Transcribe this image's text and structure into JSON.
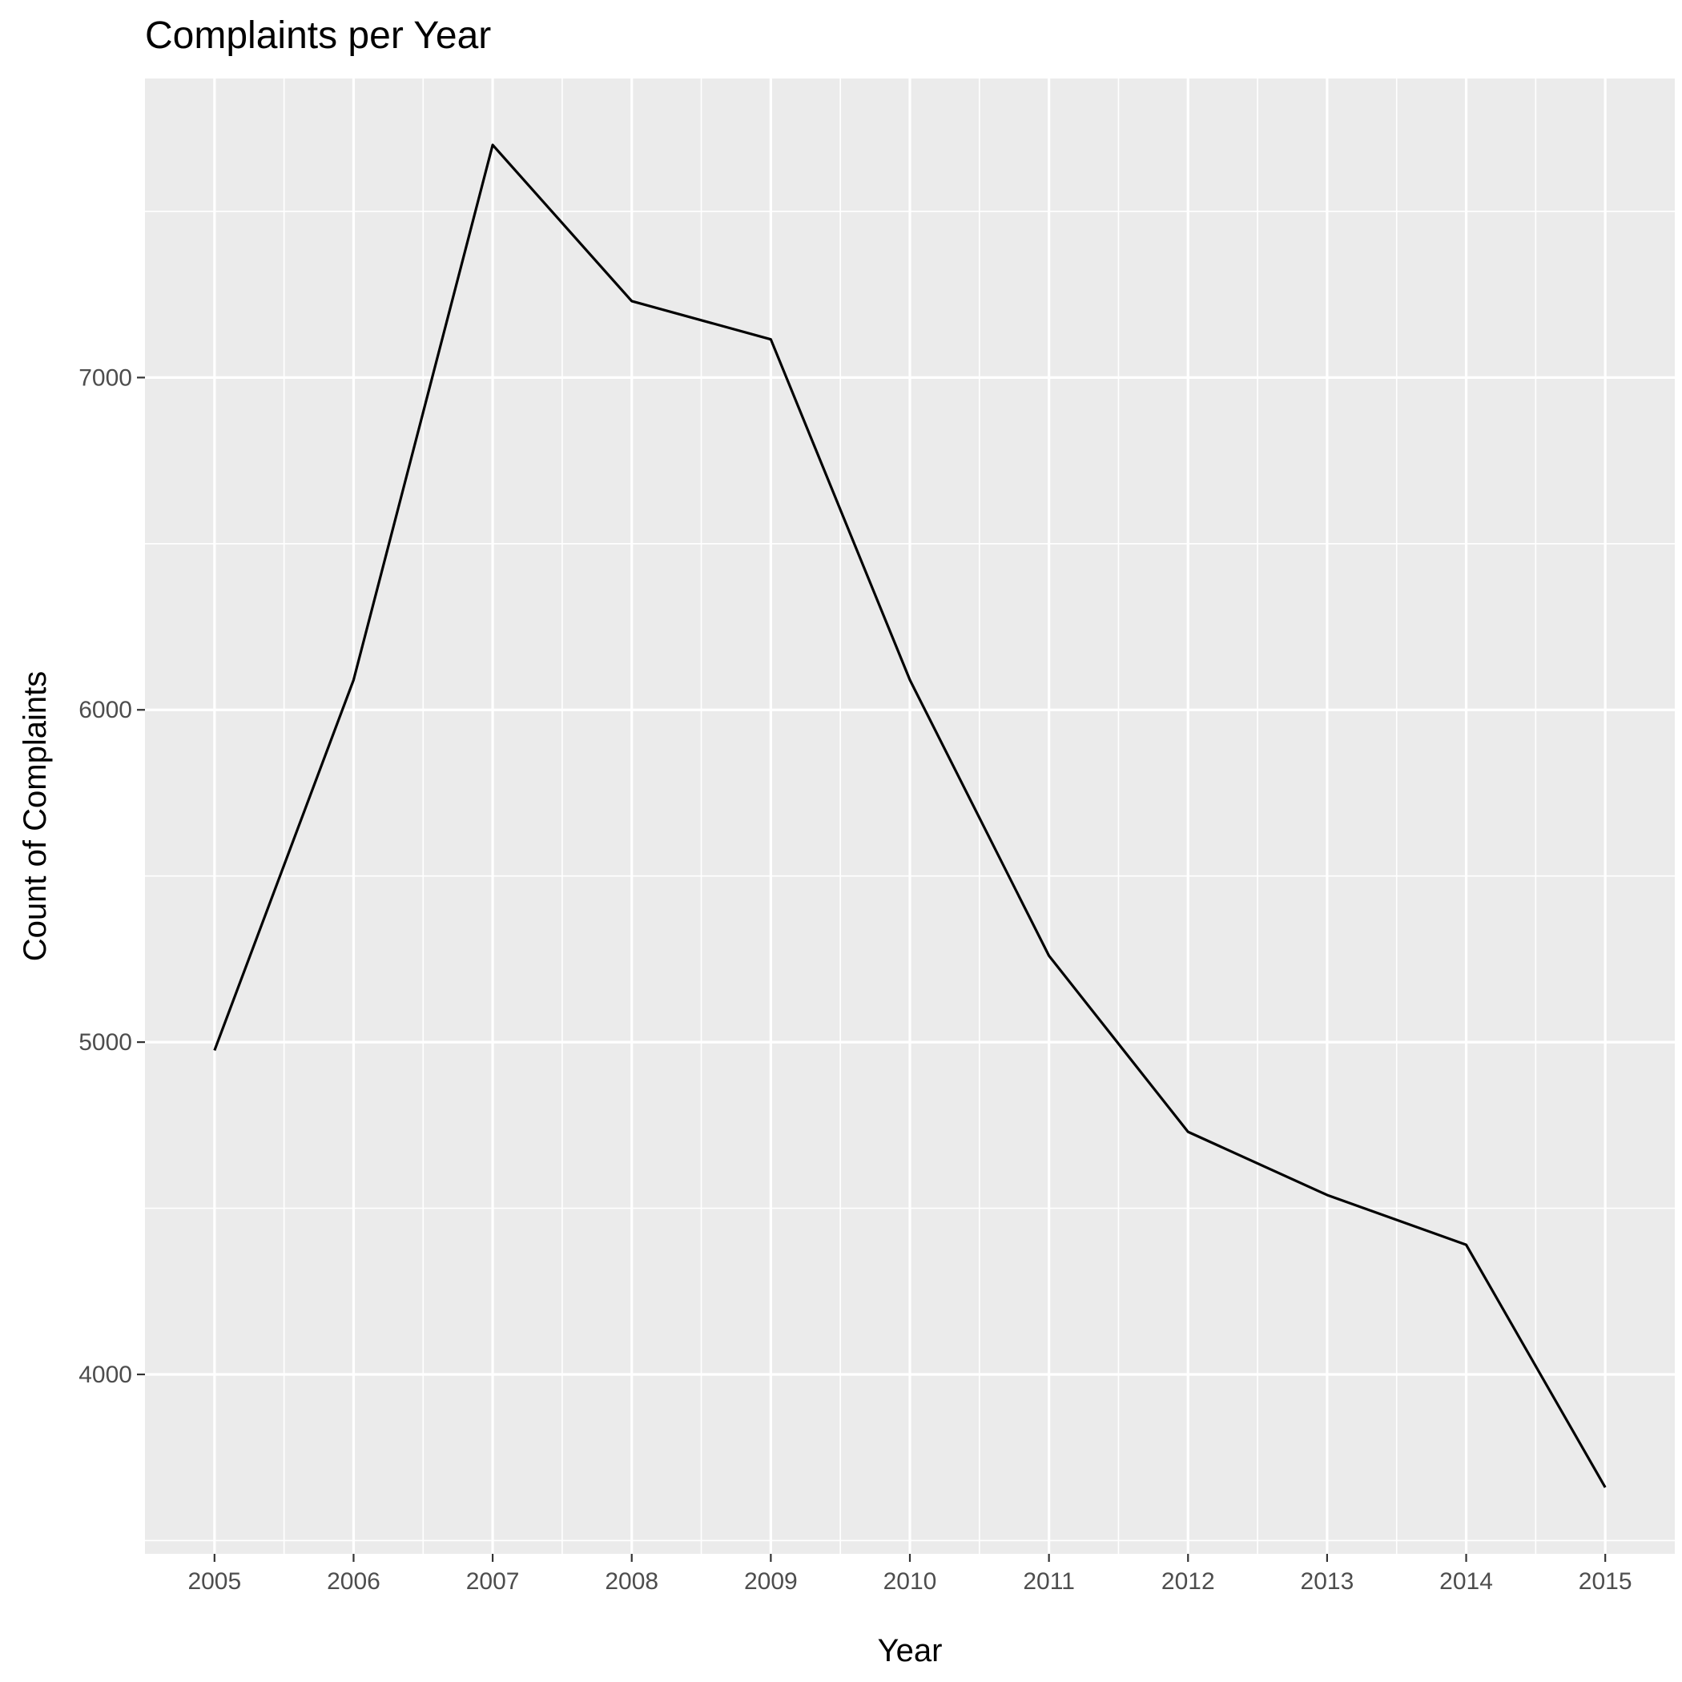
{
  "chart_data": {
    "type": "line",
    "title": "Complaints per Year",
    "xlabel": "Year",
    "ylabel": "Count of Complaints",
    "x": [
      2005,
      2006,
      2007,
      2008,
      2009,
      2010,
      2011,
      2012,
      2013,
      2014,
      2015
    ],
    "series": [
      {
        "values": [
          4975,
          6090,
          7700,
          7230,
          7115,
          6090,
          5260,
          4730,
          4540,
          4390,
          3660
        ]
      }
    ],
    "x_ticks": [
      "2005",
      "2006",
      "2007",
      "2008",
      "2009",
      "2010",
      "2011",
      "2012",
      "2013",
      "2014",
      "2015"
    ],
    "y_ticks": [
      "4000",
      "5000",
      "6000",
      "7000"
    ],
    "xlim": [
      2004.5,
      2015.5
    ],
    "ylim": [
      3460,
      7900
    ],
    "grid": true,
    "legend": "none",
    "colors": {
      "panel": "#ebebeb",
      "grid": "#ffffff",
      "line": "#000000",
      "tick_text": "#4d4d4d"
    }
  }
}
